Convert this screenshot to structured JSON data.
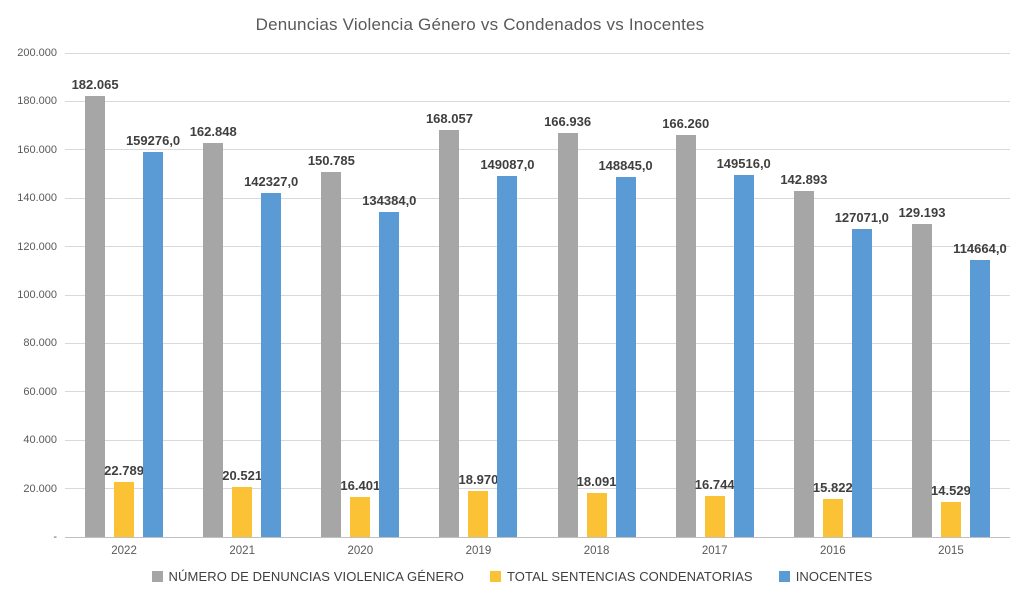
{
  "chart_data": {
    "type": "bar",
    "title": "Denuncias Violencia Género vs Condenados vs Inocentes",
    "categories": [
      "2022",
      "2021",
      "2020",
      "2019",
      "2018",
      "2017",
      "2016",
      "2015"
    ],
    "series": [
      {
        "name": "NÚMERO DE DENUNCIAS VIOLENICA GÉNERO",
        "color": "#a6a6a6",
        "values": [
          182065,
          162848,
          150785,
          168057,
          166936,
          166260,
          142893,
          129193
        ],
        "labels": [
          "182.065",
          "162.848",
          "150.785",
          "168.057",
          "166.936",
          "166.260",
          "142.893",
          "129.193"
        ]
      },
      {
        "name": "TOTAL SENTENCIAS CONDENATORIAS",
        "color": "#fcc235",
        "values": [
          22789,
          20521,
          16401,
          18970,
          18091,
          16744,
          15822,
          14529
        ],
        "labels": [
          "22.789",
          "20.521",
          "16.401",
          "18.970",
          "18.091",
          "16.744",
          "15.822",
          "14.529"
        ]
      },
      {
        "name": "INOCENTES",
        "color": "#5b9bd5",
        "values": [
          159276,
          142327,
          134384,
          149087,
          148845,
          149516,
          127071,
          114664
        ],
        "labels": [
          "159276,0",
          "142327,0",
          "134384,0",
          "149087,0",
          "148845,0",
          "149516,0",
          "127071,0",
          "114664,0"
        ]
      }
    ],
    "ylim": [
      0,
      200000
    ],
    "ytick_step": 20000,
    "ytick_labels": [
      "-",
      "20.000",
      "40.000",
      "60.000",
      "80.000",
      "100.000",
      "120.000",
      "140.000",
      "160.000",
      "180.000",
      "200.000"
    ],
    "grid": true,
    "legend_position": "bottom"
  }
}
